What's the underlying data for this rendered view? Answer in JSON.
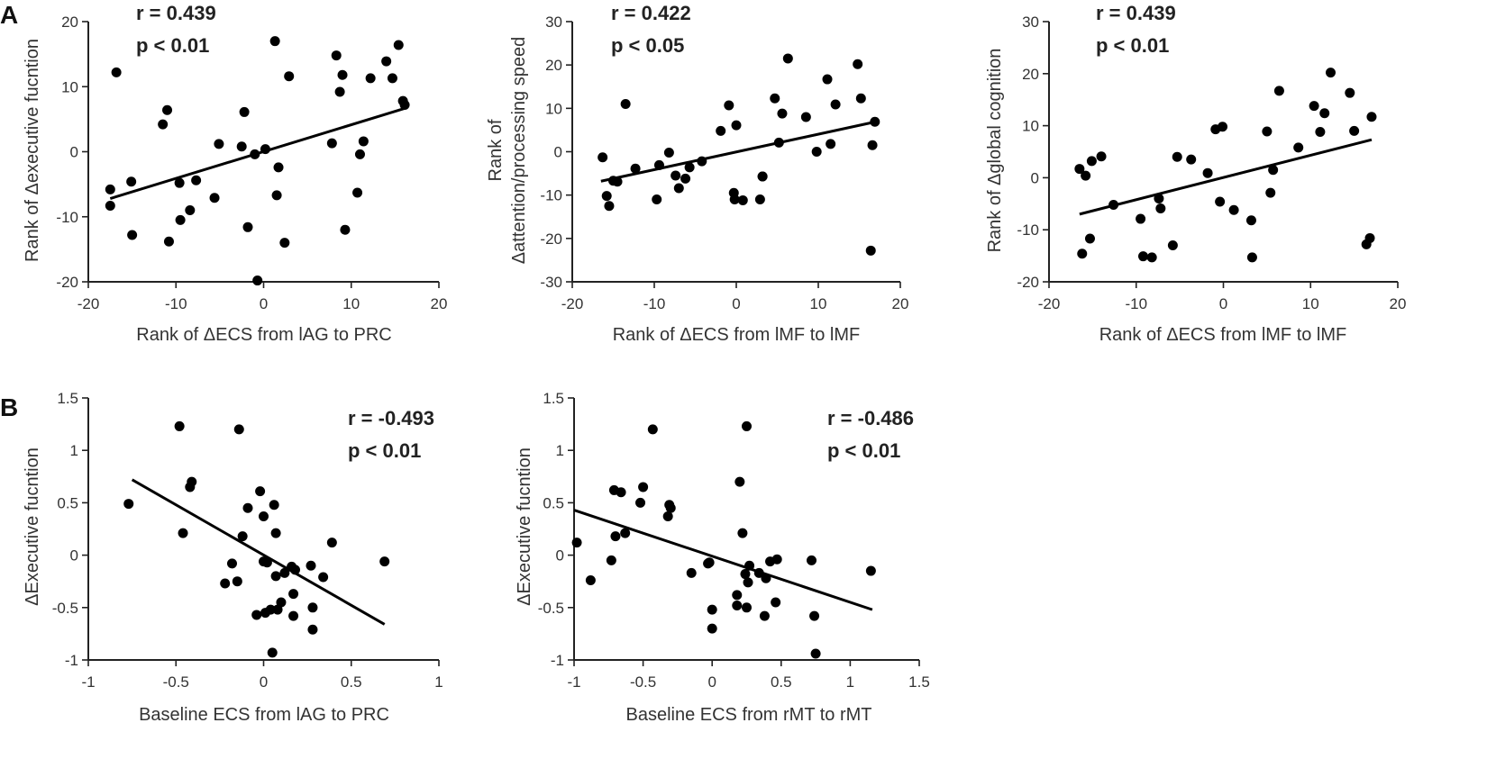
{
  "panel_labels": [
    "A",
    "B"
  ],
  "chart_data": [
    {
      "type": "scatter",
      "panel": "A",
      "xlabel": "Rank of ΔECS from lAG to PRC",
      "ylabel": "Rank of Δexecutive fucntion",
      "xlim": [
        -20,
        20
      ],
      "ylim": [
        -20,
        20
      ],
      "xticks": [
        -20,
        -10,
        0,
        10,
        20
      ],
      "xtick_labels": [
        "-20",
        "-10",
        "0",
        "10",
        "20"
      ],
      "yticks": [
        -20,
        -10,
        0,
        10,
        20
      ],
      "ytick_labels": [
        "-20",
        "-10",
        "0",
        "10",
        "20"
      ],
      "annotation": [
        "r = 0.439",
        "p < 0.01"
      ],
      "fit": {
        "x": [
          -17.5,
          16.2
        ],
        "y": [
          -7.2,
          6.7
        ]
      },
      "points": {
        "x": [
          -17.5,
          -17.5,
          -16.8,
          -15.1,
          -15.0,
          -11.5,
          -11.0,
          -10.8,
          -9.6,
          -9.5,
          -8.4,
          -7.7,
          -5.6,
          -5.1,
          -2.5,
          -2.2,
          -1.8,
          -1.0,
          -0.7,
          0.2,
          1.3,
          1.5,
          1.7,
          2.4,
          2.9,
          7.8,
          8.3,
          8.7,
          9.0,
          9.3,
          10.7,
          11.0,
          11.4,
          12.2,
          14.0,
          14.7,
          15.4,
          15.9,
          16.1
        ],
        "y": [
          -5.8,
          -8.3,
          12.2,
          -4.6,
          -12.8,
          4.2,
          6.4,
          -13.8,
          -4.8,
          -10.5,
          -9.0,
          -4.4,
          -7.1,
          1.2,
          0.8,
          6.1,
          -11.6,
          -0.4,
          -19.8,
          0.4,
          17.0,
          -6.7,
          -2.4,
          -14.0,
          11.6,
          1.3,
          14.8,
          9.2,
          11.8,
          -12.0,
          -6.3,
          -0.4,
          1.6,
          11.3,
          13.9,
          11.3,
          16.4,
          7.8,
          7.2
        ]
      }
    },
    {
      "type": "scatter",
      "panel": "A",
      "xlabel": "Rank of ΔECS from lMF to lMF",
      "ylabel": [
        "Rank of",
        "Δattention/processing speed"
      ],
      "xlim": [
        -20,
        20
      ],
      "ylim": [
        -30,
        30
      ],
      "xticks": [
        -20,
        -10,
        0,
        10,
        20
      ],
      "xtick_labels": [
        "-20",
        "-10",
        "0",
        "10",
        "20"
      ],
      "yticks": [
        -30,
        -20,
        -10,
        0,
        10,
        20,
        30
      ],
      "ytick_labels": [
        "-30",
        "-20",
        "-10",
        "0",
        "10",
        "20",
        "30"
      ],
      "annotation": [
        "r = 0.422",
        "p < 0.05"
      ],
      "fit": {
        "x": [
          -16.5,
          17.0
        ],
        "y": [
          -6.8,
          6.9
        ]
      },
      "points": {
        "x": [
          -16.3,
          -15.8,
          -15.5,
          -15.0,
          -14.5,
          -13.5,
          -12.3,
          -9.7,
          -9.4,
          -8.2,
          -7.4,
          -7.0,
          -6.2,
          -5.7,
          -4.2,
          -1.9,
          -0.9,
          -0.3,
          -0.2,
          0.0,
          0.8,
          2.9,
          3.2,
          3.2,
          4.7,
          5.2,
          5.6,
          6.3,
          8.5,
          9.8,
          11.1,
          11.5,
          12.1,
          14.8,
          15.2,
          16.4,
          16.6,
          16.9
        ],
        "y": [
          -1.3,
          -10.2,
          -12.5,
          -6.7,
          -6.9,
          11.0,
          -3.9,
          -11.0,
          -3.1,
          -0.2,
          -5.5,
          -8.4,
          -6.2,
          -3.6,
          -2.2,
          4.8,
          10.7,
          -9.5,
          -11.0,
          6.1,
          -11.2,
          -11.0,
          -5.7,
          -5.7,
          12.3,
          2.1,
          8.8,
          21.5,
          8.0,
          0.0,
          16.7,
          1.8,
          10.9,
          20.2,
          12.3,
          -22.8,
          1.5,
          6.9
        ]
      }
    },
    {
      "type": "scatter",
      "panel": "A",
      "xlabel": "Rank of ΔECS from lMF to lMF",
      "ylabel": "Rank of Δglobal cognition",
      "xlim": [
        -20,
        20
      ],
      "ylim": [
        -20,
        30
      ],
      "xticks": [
        -20,
        -10,
        0,
        10,
        20
      ],
      "xtick_labels": [
        "-20",
        "-10",
        "0",
        "10",
        "20"
      ],
      "yticks": [
        -20,
        -10,
        0,
        10,
        20,
        30
      ],
      "ytick_labels": [
        "-20",
        "-10",
        "0",
        "10",
        "20",
        "30"
      ],
      "annotation": [
        "r = 0.439",
        "p < 0.01"
      ],
      "fit": {
        "x": [
          -16.5,
          17.0
        ],
        "y": [
          -7.0,
          7.3
        ]
      },
      "points": {
        "x": [
          -16.5,
          -16.2,
          -15.8,
          -15.3,
          -15.1,
          -14.0,
          -12.6,
          -9.5,
          -9.2,
          -8.2,
          -7.4,
          -7.2,
          -5.8,
          -5.3,
          -3.7,
          -1.8,
          -0.9,
          -0.4,
          -0.1,
          1.2,
          3.2,
          3.3,
          5.0,
          5.4,
          5.7,
          6.4,
          8.6,
          10.4,
          11.1,
          11.6,
          12.3,
          14.5,
          15.0,
          16.4,
          16.8,
          17.0
        ],
        "y": [
          1.7,
          -14.6,
          0.4,
          -11.7,
          3.2,
          4.1,
          -5.2,
          -7.9,
          -15.1,
          -15.3,
          -4.0,
          -5.9,
          -13.0,
          4.0,
          3.5,
          0.9,
          9.3,
          -4.6,
          9.8,
          -6.2,
          -8.2,
          -15.3,
          8.9,
          -2.9,
          1.5,
          16.7,
          5.8,
          13.8,
          8.8,
          12.4,
          20.2,
          16.3,
          9.0,
          -12.8,
          -11.6,
          11.7
        ]
      }
    },
    {
      "type": "scatter",
      "panel": "B",
      "xlabel": "Baseline ECS from lAG to PRC",
      "ylabel": "ΔExecutive fucntion",
      "xlim": [
        -1,
        1
      ],
      "ylim": [
        -1,
        1.5
      ],
      "xticks": [
        -1,
        -0.5,
        0,
        0.5,
        1
      ],
      "xtick_labels": [
        "-1",
        "-0.5",
        "0",
        "0.5",
        "1"
      ],
      "yticks": [
        -1,
        -0.5,
        0,
        0.5,
        1,
        1.5
      ],
      "ytick_labels": [
        "-1",
        "-0.5",
        "0",
        "0.5",
        "1",
        "1.5"
      ],
      "annotation": [
        "r = -0.493",
        "p < 0.01"
      ],
      "fit": {
        "x": [
          -0.75,
          0.69
        ],
        "y": [
          0.72,
          -0.66
        ]
      },
      "points": {
        "x": [
          -0.77,
          -0.48,
          -0.46,
          -0.42,
          -0.41,
          -0.22,
          -0.18,
          -0.15,
          -0.14,
          -0.12,
          -0.09,
          -0.04,
          -0.02,
          0.0,
          0.0,
          0.01,
          0.02,
          0.04,
          0.05,
          0.06,
          0.07,
          0.07,
          0.08,
          0.1,
          0.12,
          0.16,
          0.17,
          0.17,
          0.18,
          0.27,
          0.28,
          0.28,
          0.34,
          0.39,
          0.69
        ],
        "y": [
          0.49,
          1.23,
          0.21,
          0.65,
          0.7,
          -0.27,
          -0.08,
          -0.25,
          1.2,
          0.18,
          0.45,
          -0.57,
          0.61,
          0.37,
          -0.06,
          -0.55,
          -0.07,
          -0.52,
          -0.93,
          0.48,
          0.21,
          -0.2,
          -0.52,
          -0.45,
          -0.17,
          -0.11,
          -0.37,
          -0.58,
          -0.14,
          -0.1,
          -0.5,
          -0.71,
          -0.21,
          0.12,
          -0.06
        ]
      }
    },
    {
      "type": "scatter",
      "panel": "B",
      "xlabel": "Baseline ECS from rMT to rMT",
      "ylabel": "ΔExecutive fucntion",
      "xlim": [
        -1,
        1.5
      ],
      "ylim": [
        -1,
        1.5
      ],
      "xticks": [
        -1,
        -0.5,
        0,
        0.5,
        1,
        1.5
      ],
      "xtick_labels": [
        "-1",
        "-0.5",
        "0",
        "0.5",
        "1",
        "1.5"
      ],
      "yticks": [
        -1,
        -0.5,
        0,
        0.5,
        1,
        1.5
      ],
      "ytick_labels": [
        "-1",
        "-0.5",
        "0",
        "0.5",
        "1",
        "1.5"
      ],
      "annotation": [
        "r = -0.486",
        "p < 0.01"
      ],
      "fit": {
        "x": [
          -1.0,
          1.16
        ],
        "y": [
          0.43,
          -0.52
        ]
      },
      "points": {
        "x": [
          -0.98,
          -0.88,
          -0.73,
          -0.71,
          -0.7,
          -0.66,
          -0.63,
          -0.52,
          -0.5,
          -0.43,
          -0.31,
          -0.3,
          -0.32,
          -0.15,
          -0.03,
          -0.02,
          0.0,
          0.0,
          0.18,
          0.18,
          0.2,
          0.22,
          0.24,
          0.25,
          0.25,
          0.26,
          0.27,
          0.34,
          0.38,
          0.39,
          0.42,
          0.46,
          0.47,
          0.72,
          0.74,
          0.75,
          1.15
        ],
        "y": [
          0.12,
          -0.24,
          -0.05,
          0.62,
          0.18,
          0.6,
          0.21,
          0.5,
          0.65,
          1.2,
          0.48,
          0.45,
          0.37,
          -0.17,
          -0.08,
          -0.07,
          -0.52,
          -0.7,
          -0.38,
          -0.48,
          0.7,
          0.21,
          -0.18,
          -0.5,
          1.23,
          -0.26,
          -0.1,
          -0.17,
          -0.58,
          -0.22,
          -0.06,
          -0.45,
          -0.04,
          -0.05,
          -0.58,
          -0.94,
          -0.15
        ]
      }
    }
  ]
}
